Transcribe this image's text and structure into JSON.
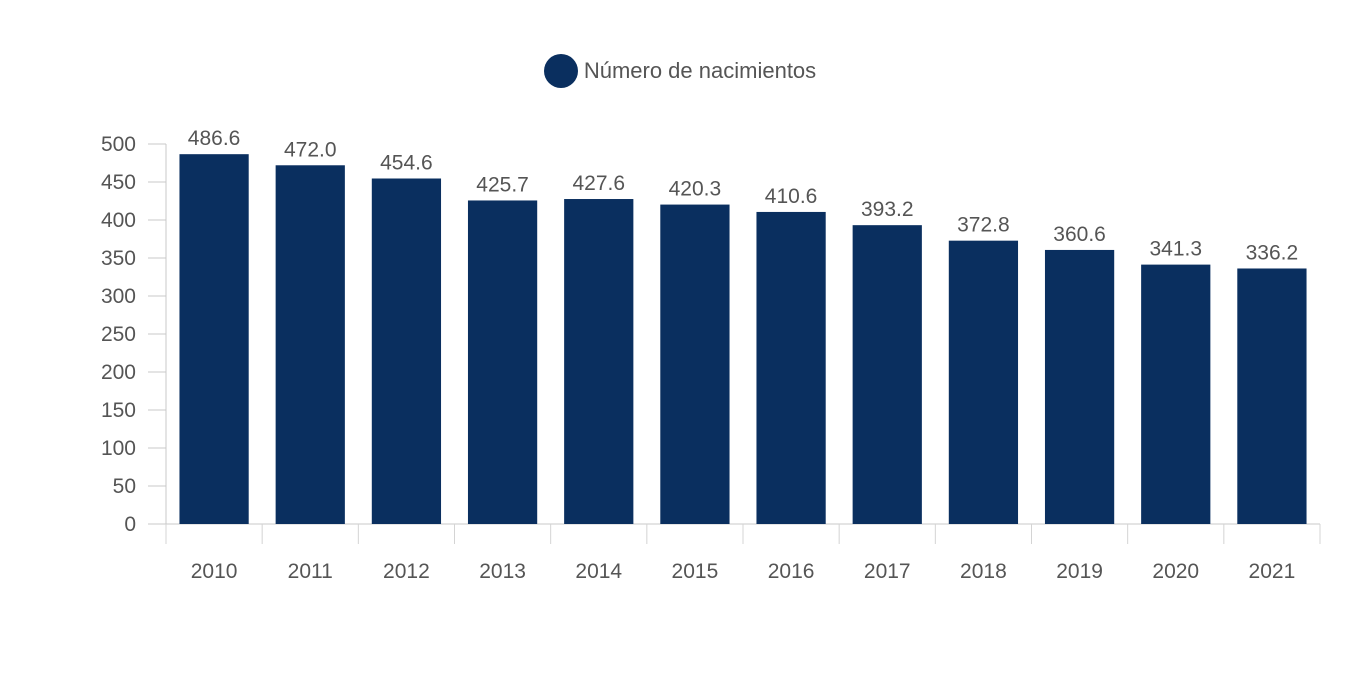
{
  "chart_data": {
    "type": "bar",
    "legend": {
      "placement": "top-center",
      "entries": [
        {
          "name": "Número de nacimientos",
          "color": "#0a2f5f"
        }
      ]
    },
    "categories": [
      "2010",
      "2011",
      "2012",
      "2013",
      "2014",
      "2015",
      "2016",
      "2017",
      "2018",
      "2019",
      "2020",
      "2021"
    ],
    "series": [
      {
        "name": "Número de nacimientos",
        "color": "#0a2f5f",
        "values": [
          486.6,
          472.0,
          454.6,
          425.7,
          427.6,
          420.3,
          410.6,
          393.2,
          372.8,
          360.6,
          341.3,
          336.2
        ]
      }
    ],
    "data_labels": [
      "486.6",
      "472.0",
      "454.6",
      "425.7",
      "427.6",
      "420.3",
      "410.6",
      "393.2",
      "372.8",
      "360.6",
      "341.3",
      "336.2"
    ],
    "y_ticks": [
      0,
      50,
      100,
      150,
      200,
      250,
      300,
      350,
      400,
      450,
      500
    ],
    "ylim": [
      0,
      500
    ],
    "grid": false,
    "title": "",
    "xlabel": "",
    "ylabel": ""
  }
}
